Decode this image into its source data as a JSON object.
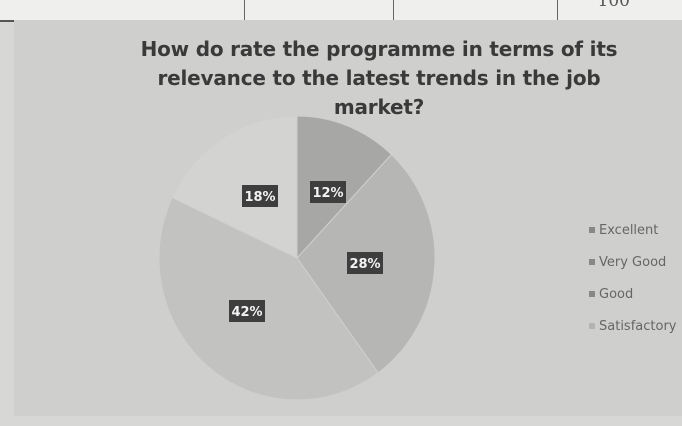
{
  "chart_data": {
    "type": "pie",
    "title_lines": [
      "How do rate the programme in terms of its",
      "relevance to the latest trends in the job market?"
    ],
    "slices": [
      {
        "label": "Excellent",
        "value": 12,
        "display": "12%",
        "color": "#a7a7a5"
      },
      {
        "label": "Very Good",
        "value": 28,
        "display": "28%",
        "color": "#b6b6b4"
      },
      {
        "label": "Good",
        "value": 42,
        "display": "42%",
        "color": "#c2c2c0"
      },
      {
        "label": "Satisfactory",
        "value": 18,
        "display": "18%",
        "color": "#d3d3d1"
      }
    ],
    "legend_position": "right",
    "label_box_color": "#3e3e3e",
    "label_text_color": "#f2f2f2"
  },
  "background_fragment": {
    "partial_text": "100"
  }
}
